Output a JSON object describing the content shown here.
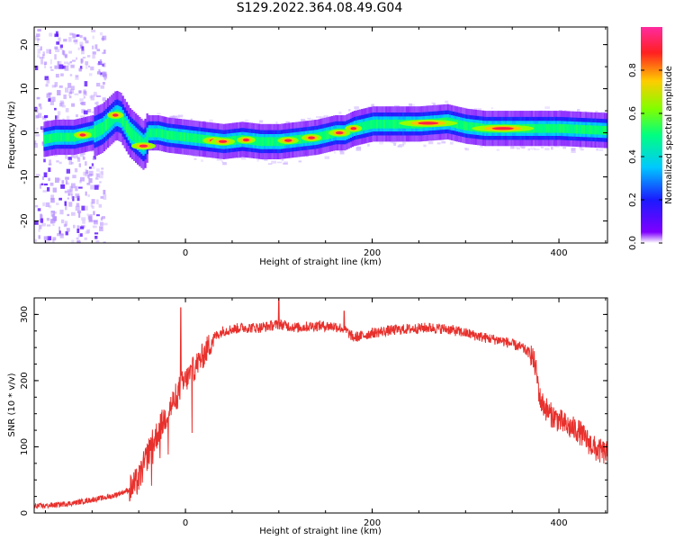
{
  "title": "S129.2022.364.08.49.G04",
  "colors": {
    "snr_line": "#e8302c",
    "background": "#ffffff",
    "axis": "#000000"
  },
  "chart_data": [
    {
      "type": "heatmap",
      "title": "S129.2022.364.08.49.G04",
      "xlabel": "Height of straight line (km)",
      "ylabel": "Frequency (Hz)",
      "xlim": [
        -162,
        452
      ],
      "ylim": [
        -25,
        24
      ],
      "xticks": [
        0,
        200,
        400
      ],
      "yticks": [
        -20,
        -10,
        0,
        10,
        20
      ],
      "colorbar": {
        "label": "Normalized spectral amplitude",
        "range": [
          0,
          1
        ],
        "ticks": [
          "0.0",
          "0.2",
          "0.4",
          "0.6",
          "0.8"
        ],
        "colormap": "rainbow (violet to red)"
      },
      "ridge_frequency": {
        "x": [
          -152,
          -140,
          -120,
          -100,
          -90,
          -80,
          -75,
          -70,
          -60,
          -50,
          -45,
          -40,
          -30,
          -20,
          0,
          40,
          60,
          80,
          100,
          120,
          140,
          160,
          170,
          180,
          200,
          250,
          280,
          300,
          320,
          360,
          400,
          452
        ],
        "y": [
          -1.5,
          -1,
          -1,
          0,
          1,
          3,
          4,
          3.5,
          0,
          -2,
          -3,
          0,
          0,
          -0.5,
          -1,
          -2,
          -1.5,
          -2,
          -2,
          -1.5,
          -1,
          0,
          0,
          1,
          2,
          2,
          2.5,
          1.5,
          1,
          1,
          1,
          0.5
        ]
      },
      "peak_amplitude_regions_x": [
        -110,
        -75,
        -45,
        30,
        40,
        65,
        110,
        135,
        165,
        180,
        260,
        340
      ]
    },
    {
      "type": "line",
      "title": "",
      "xlabel": "Height of straight line (km)",
      "ylabel": "SNR (10 * v/v)",
      "xlim": [
        -162,
        452
      ],
      "ylim": [
        0,
        325
      ],
      "xticks": [
        0,
        200,
        400
      ],
      "yticks": [
        0,
        100,
        200,
        300
      ],
      "series": [
        {
          "x": [
            -162,
            -140,
            -120,
            -100,
            -80,
            -60,
            -50,
            -40,
            -30,
            -20,
            -10,
            -5,
            0,
            10,
            20,
            30,
            40,
            60,
            80,
            100,
            120,
            140,
            160,
            170,
            180,
            190,
            200,
            220,
            240,
            260,
            280,
            300,
            320,
            340,
            360,
            370,
            375,
            380,
            390,
            400,
            410,
            420,
            430,
            440,
            452
          ],
          "values": [
            10,
            12,
            15,
            20,
            25,
            35,
            50,
            90,
            120,
            150,
            175,
            190,
            200,
            220,
            240,
            265,
            275,
            280,
            280,
            285,
            280,
            283,
            282,
            278,
            265,
            268,
            272,
            276,
            278,
            280,
            278,
            272,
            265,
            260,
            250,
            240,
            220,
            170,
            150,
            140,
            130,
            125,
            110,
            95,
            90
          ]
        }
      ],
      "spikes": [
        {
          "x": -5,
          "value": 310
        },
        {
          "x": 100,
          "value": 325
        },
        {
          "x": 170,
          "value": 305
        }
      ]
    }
  ]
}
